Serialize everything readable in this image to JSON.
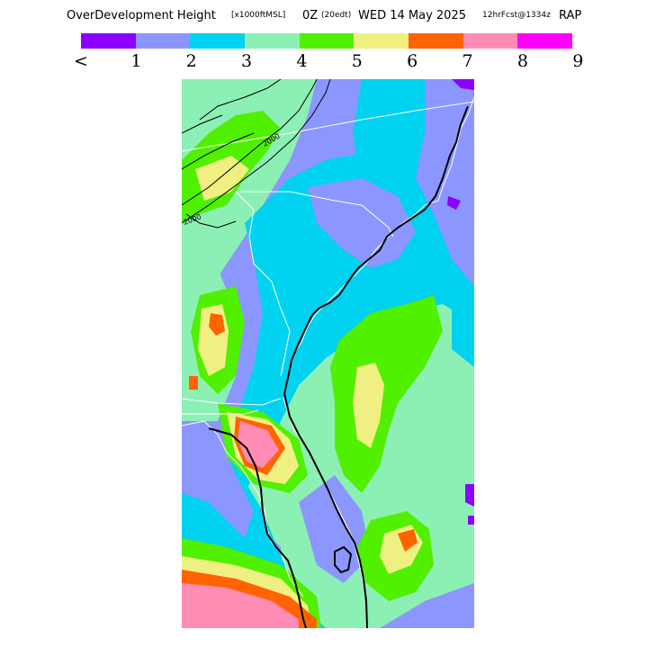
{
  "header": {
    "title": "OverDevelopment Height",
    "units": "[x1000ftMSL]",
    "time": "0Z",
    "timezone": "(20edt)",
    "date": "WED 14 May 2025",
    "forecast": "12hrFcst@1334z",
    "model": "RAP"
  },
  "legend": {
    "colors": [
      "#8c00ff",
      "#8c96ff",
      "#00d2f0",
      "#8cf0b4",
      "#50f000",
      "#f0f082",
      "#ff6400",
      "#ff8cb4",
      "#ff00ff"
    ],
    "labels": [
      "<",
      "1",
      "2",
      "3",
      "4",
      "5",
      "6",
      "7",
      "8",
      "9"
    ]
  },
  "map": {
    "contour_labels": [
      "2000",
      "2000"
    ]
  }
}
